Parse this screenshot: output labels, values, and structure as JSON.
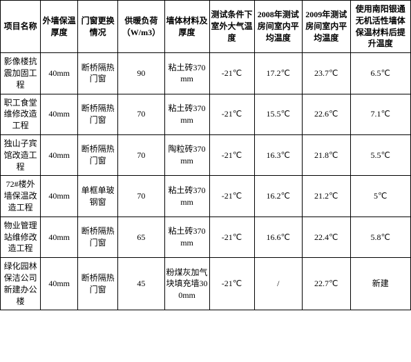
{
  "table": {
    "columns": [
      "项目名称",
      "外墙保温厚度",
      "门窗更换情况",
      "供暖负荷（W/m3）",
      "墙体材料及厚度",
      "测试条件下室外大气温度",
      "2008年测试房间室内平均温度",
      "2009年测试房间室内平均温度",
      "使用南阳银通无机活性墙体保温材料后提升温度"
    ],
    "rows": [
      [
        "影像楼抗震加固工程",
        "40mm",
        "断桥隔热门窗",
        "90",
        "粘土砖370mm",
        "-21℃",
        "17.2℃",
        "23.7℃",
        "6.5℃"
      ],
      [
        "职工食堂维修改造工程",
        "40mm",
        "断桥隔热门窗",
        "70",
        "粘土砖370mm",
        "-21℃",
        "15.5℃",
        "22.6℃",
        "7.1℃"
      ],
      [
        "独山子宾馆改造工程",
        "40mm",
        "断桥隔热门窗",
        "70",
        "陶粒砖370mm",
        "-21℃",
        "16.3℃",
        "21.8℃",
        "5.5℃"
      ],
      [
        "72#楼外墙保温改造工程",
        "40mm",
        "单框单玻钢窗",
        "70",
        "粘土砖370mm",
        "-21℃",
        "16.2℃",
        "21.2℃",
        "5℃"
      ],
      [
        "物业管理站维修改造工程",
        "40mm",
        "断桥隔热门窗",
        "65",
        "粘土砖370mm",
        "-21℃",
        "16.6℃",
        "22.4℃",
        "5.8℃"
      ],
      [
        "绿化园林保洁公司新建办公楼",
        "40mm",
        "断桥隔热门窗",
        "45",
        "粉煤灰加气块填充墙300mm",
        "-21℃",
        "/",
        "22.7℃",
        "新建"
      ]
    ]
  }
}
